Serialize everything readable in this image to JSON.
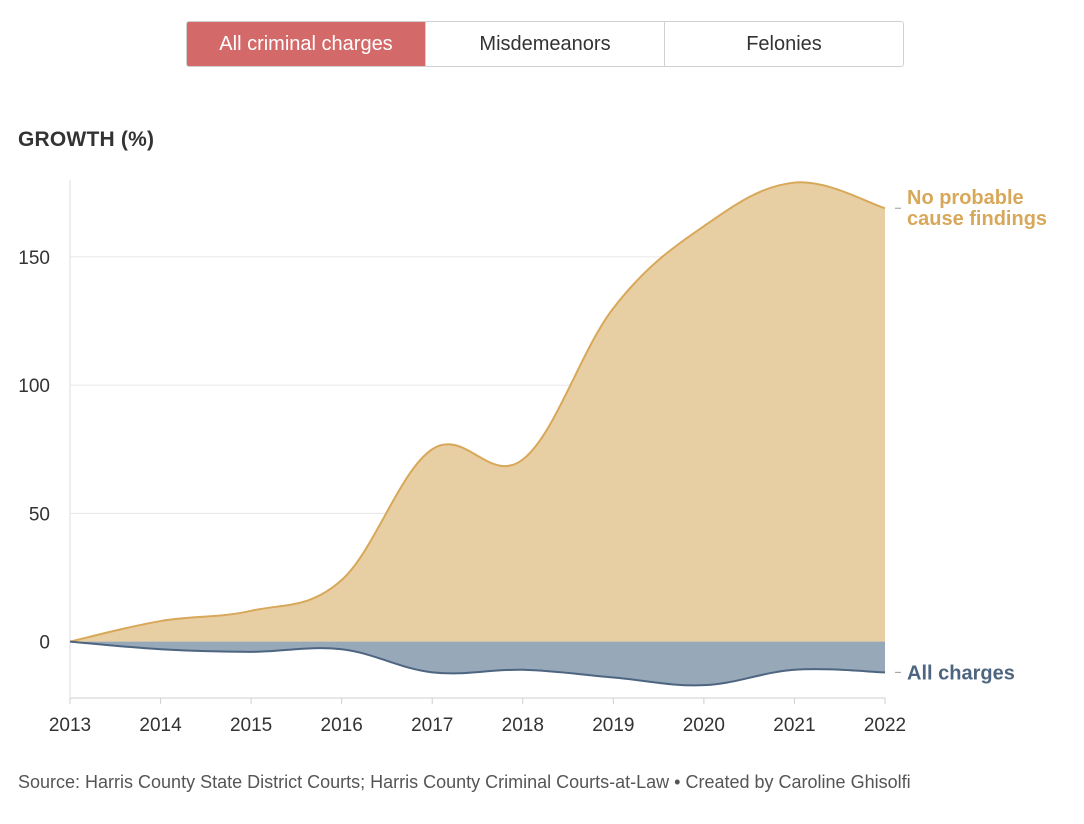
{
  "tabs": [
    {
      "label": "All criminal charges",
      "active": true
    },
    {
      "label": "Misdemeanors",
      "active": false
    },
    {
      "label": "Felonies",
      "active": false
    }
  ],
  "colors": {
    "active_tab": "#d4696a",
    "no_probable_cause": "#d8a85a",
    "no_probable_cause_fill": "#e8cfa3",
    "all_charges": "#4d6580",
    "all_charges_fill": "#97a8b8"
  },
  "source": "Source: Harris County State District Courts; Harris County Criminal Courts-at-Law • Created by Caroline Ghisolfi",
  "chart_data": {
    "type": "area",
    "title": "",
    "xlabel": "",
    "ylabel": "GROWTH (%)",
    "x": [
      2013,
      2014,
      2015,
      2016,
      2017,
      2018,
      2019,
      2020,
      2021,
      2022
    ],
    "ylim": [
      -22,
      180
    ],
    "yticks": [
      0,
      50,
      100,
      150
    ],
    "grid": true,
    "series": [
      {
        "name": "No probable cause findings",
        "label_lines": [
          "No probable",
          "cause findings"
        ],
        "values": [
          0,
          8,
          12,
          24,
          75,
          71,
          130,
          162,
          179,
          169
        ]
      },
      {
        "name": "All charges",
        "label_lines": [
          "All charges"
        ],
        "values": [
          0,
          -3,
          -4,
          -3,
          -12,
          -11,
          -14,
          -17,
          -11,
          -12
        ]
      }
    ]
  }
}
